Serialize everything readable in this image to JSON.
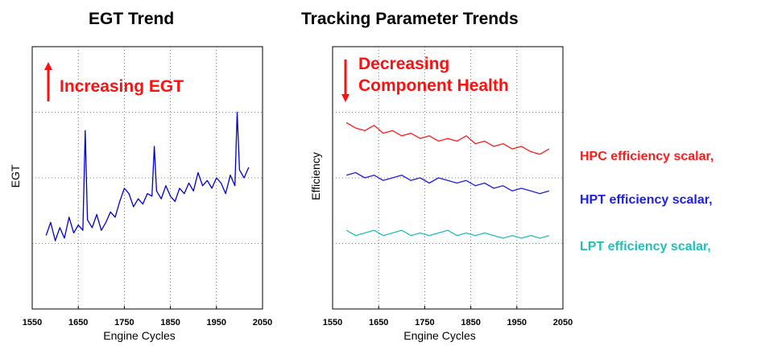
{
  "chart_data": [
    {
      "type": "line",
      "title": "EGT Trend",
      "xlabel": "Engine Cycles",
      "ylabel": "EGT",
      "xlim": [
        1550,
        2050
      ],
      "xticks": [
        1550,
        1650,
        1750,
        1850,
        1950,
        2050
      ],
      "yticks_labeled": false,
      "grid": true,
      "annotation": "Increasing EGT",
      "annotation_arrow": "up",
      "series": [
        {
          "color": "#0000cc",
          "x": [
            1580,
            1590,
            1600,
            1610,
            1620,
            1630,
            1640,
            1650,
            1660,
            1665,
            1670,
            1680,
            1690,
            1700,
            1710,
            1720,
            1730,
            1740,
            1750,
            1760,
            1770,
            1780,
            1790,
            1800,
            1810,
            1815,
            1820,
            1830,
            1840,
            1850,
            1860,
            1870,
            1880,
            1890,
            1900,
            1910,
            1920,
            1930,
            1940,
            1950,
            1960,
            1970,
            1980,
            1990,
            1995,
            2000,
            2010,
            2020
          ],
          "y": [
            28,
            33,
            26,
            31,
            27,
            35,
            29,
            32,
            30,
            68,
            34,
            31,
            36,
            30,
            33,
            37,
            35,
            41,
            46,
            44,
            39,
            42,
            40,
            44,
            43,
            62,
            45,
            42,
            47,
            43,
            41,
            46,
            44,
            48,
            45,
            52,
            47,
            49,
            46,
            50,
            48,
            44,
            51,
            47,
            75,
            53,
            50,
            54
          ]
        }
      ]
    },
    {
      "type": "line",
      "title": "Tracking Parameter Trends",
      "xlabel": "Engine Cycles",
      "ylabel": "Efficiency",
      "xlim": [
        1550,
        2050
      ],
      "xticks": [
        1550,
        1650,
        1750,
        1850,
        1950,
        2050
      ],
      "yticks_labeled": false,
      "grid": true,
      "annotation": [
        "Decreasing",
        "Component Health"
      ],
      "annotation_arrow": "down",
      "series": [
        {
          "name": "HPC efficiency scalar,",
          "color": "#ff1a1a",
          "x": [
            1580,
            1600,
            1620,
            1640,
            1660,
            1680,
            1700,
            1720,
            1740,
            1760,
            1780,
            1800,
            1820,
            1840,
            1860,
            1880,
            1900,
            1920,
            1940,
            1960,
            1980,
            2000,
            2020
          ],
          "y": [
            71,
            69,
            68,
            70,
            67,
            68,
            66,
            67,
            65,
            66,
            64,
            65,
            64,
            66,
            63,
            64,
            62,
            63,
            61,
            62,
            60,
            59,
            61
          ]
        },
        {
          "name": "HPT efficiency scalar,",
          "color": "#1f1fe0",
          "x": [
            1580,
            1600,
            1620,
            1640,
            1660,
            1680,
            1700,
            1720,
            1740,
            1760,
            1780,
            1800,
            1820,
            1840,
            1860,
            1880,
            1900,
            1920,
            1940,
            1960,
            1980,
            2000,
            2020
          ],
          "y": [
            51,
            52,
            50,
            51,
            49,
            50,
            51,
            49,
            50,
            48,
            50,
            49,
            48,
            49,
            47,
            48,
            46,
            47,
            45,
            46,
            45,
            44,
            45
          ]
        },
        {
          "name": "LPT efficiency scalar,",
          "color": "#20c0b8",
          "x": [
            1580,
            1600,
            1620,
            1640,
            1660,
            1680,
            1700,
            1720,
            1740,
            1760,
            1780,
            1800,
            1820,
            1840,
            1860,
            1880,
            1900,
            1920,
            1940,
            1960,
            1980,
            2000,
            2020
          ],
          "y": [
            30,
            28,
            29,
            30,
            28,
            29,
            30,
            28,
            29,
            28,
            29,
            30,
            28,
            29,
            28,
            29,
            28,
            27,
            28,
            27,
            28,
            27,
            28
          ]
        }
      ]
    }
  ]
}
